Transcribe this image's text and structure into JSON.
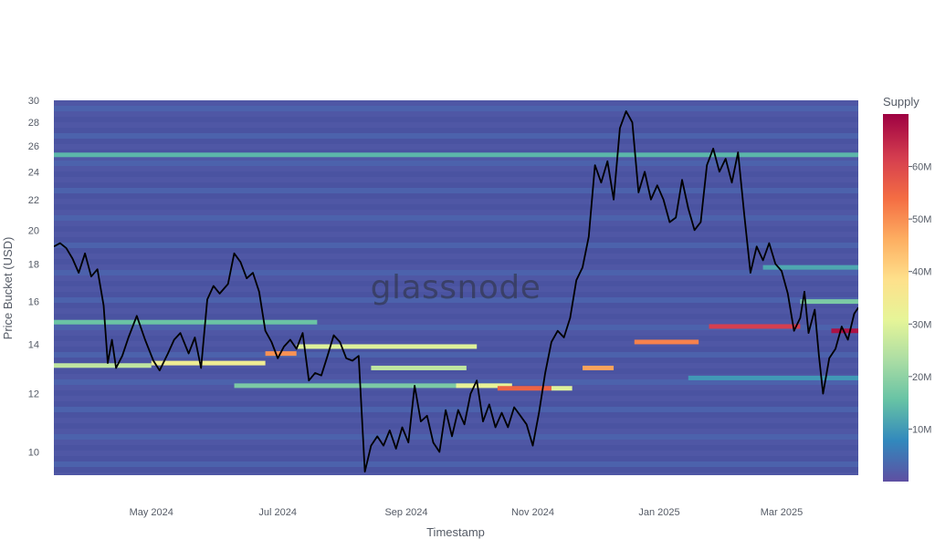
{
  "chart_data": {
    "type": "heatmap",
    "title": "",
    "watermark": "glassnode",
    "xlabel": "Timestamp",
    "ylabel": "Price Bucket (USD)",
    "y_scale": "log",
    "ylim": [
      9.3,
      30
    ],
    "xlim": [
      "2024-03-15",
      "2025-04-07"
    ],
    "x_ticks": [
      {
        "date": "2024-05-01",
        "label": "May 2024"
      },
      {
        "date": "2024-07-01",
        "label": "Jul 2024"
      },
      {
        "date": "2024-09-01",
        "label": "Sep 2024"
      },
      {
        "date": "2024-11-01",
        "label": "Nov 2024"
      },
      {
        "date": "2025-01-01",
        "label": "Jan 2025"
      },
      {
        "date": "2025-03-01",
        "label": "Mar 2025"
      }
    ],
    "y_ticks": [
      {
        "value": 10,
        "label": "10"
      },
      {
        "value": 12,
        "label": "12"
      },
      {
        "value": 14,
        "label": "14"
      },
      {
        "value": 16,
        "label": "16"
      },
      {
        "value": 18,
        "label": "18"
      },
      {
        "value": 20,
        "label": "20"
      },
      {
        "value": 22,
        "label": "22"
      },
      {
        "value": 24,
        "label": "24"
      },
      {
        "value": 26,
        "label": "26"
      },
      {
        "value": 28,
        "label": "28"
      },
      {
        "value": 30,
        "label": "30"
      }
    ],
    "colorbar": {
      "title": "Supply",
      "min": 0,
      "max": 70000000,
      "ticks": [
        {
          "value": 10000000,
          "label": "10M"
        },
        {
          "value": 20000000,
          "label": "20M"
        },
        {
          "value": 30000000,
          "label": "30M"
        },
        {
          "value": 40000000,
          "label": "40M"
        },
        {
          "value": 50000000,
          "label": "50M"
        },
        {
          "value": 60000000,
          "label": "60M"
        }
      ],
      "colorscale": [
        "#5e4fa2",
        "#3288bd",
        "#66c2a5",
        "#abdda4",
        "#e6f598",
        "#fee08b",
        "#fdae61",
        "#f46d43",
        "#d53e4f",
        "#9e0142"
      ]
    },
    "supply_bands": [
      {
        "start": "2024-03-15",
        "end": "2025-04-07",
        "price": 25.3,
        "supply": 14000000
      },
      {
        "start": "2024-03-15",
        "end": "2024-05-01",
        "price": 13.1,
        "supply": 26000000
      },
      {
        "start": "2024-05-01",
        "end": "2024-06-25",
        "price": 13.2,
        "supply": 34000000
      },
      {
        "start": "2024-06-25",
        "end": "2024-07-10",
        "price": 13.6,
        "supply": 50000000
      },
      {
        "start": "2024-07-10",
        "end": "2024-10-05",
        "price": 13.9,
        "supply": 30000000
      },
      {
        "start": "2024-03-15",
        "end": "2024-07-20",
        "price": 15.0,
        "supply": 16000000
      },
      {
        "start": "2024-06-10",
        "end": "2024-10-20",
        "price": 12.3,
        "supply": 18000000
      },
      {
        "start": "2024-08-15",
        "end": "2024-09-30",
        "price": 13.0,
        "supply": 26000000
      },
      {
        "start": "2024-09-25",
        "end": "2024-10-22",
        "price": 12.3,
        "supply": 32000000
      },
      {
        "start": "2024-10-15",
        "end": "2024-11-10",
        "price": 12.2,
        "supply": 56000000
      },
      {
        "start": "2024-11-10",
        "end": "2024-11-20",
        "price": 12.2,
        "supply": 30000000
      },
      {
        "start": "2024-11-25",
        "end": "2024-12-10",
        "price": 13.0,
        "supply": 48000000
      },
      {
        "start": "2024-12-20",
        "end": "2025-01-20",
        "price": 14.1,
        "supply": 52000000
      },
      {
        "start": "2025-01-25",
        "end": "2025-03-10",
        "price": 14.8,
        "supply": 62000000
      },
      {
        "start": "2025-03-25",
        "end": "2025-04-07",
        "price": 14.6,
        "supply": 68000000
      },
      {
        "start": "2025-03-10",
        "end": "2025-04-07",
        "price": 16.0,
        "supply": 18000000
      },
      {
        "start": "2025-02-20",
        "end": "2025-04-07",
        "price": 17.8,
        "supply": 12000000
      },
      {
        "start": "2025-01-15",
        "end": "2025-04-07",
        "price": 12.6,
        "supply": 10000000
      }
    ],
    "price_series": {
      "name": "Price",
      "points": [
        [
          "2024-03-15",
          19.0
        ],
        [
          "2024-03-18",
          19.2
        ],
        [
          "2024-03-21",
          18.9
        ],
        [
          "2024-03-24",
          18.3
        ],
        [
          "2024-03-27",
          17.5
        ],
        [
          "2024-03-30",
          18.6
        ],
        [
          "2024-04-02",
          17.3
        ],
        [
          "2024-04-05",
          17.7
        ],
        [
          "2024-04-08",
          15.8
        ],
        [
          "2024-04-10",
          13.2
        ],
        [
          "2024-04-12",
          14.2
        ],
        [
          "2024-04-14",
          13.0
        ],
        [
          "2024-04-17",
          13.5
        ],
        [
          "2024-04-20",
          14.3
        ],
        [
          "2024-04-24",
          15.3
        ],
        [
          "2024-04-28",
          14.2
        ],
        [
          "2024-05-02",
          13.3
        ],
        [
          "2024-05-05",
          12.9
        ],
        [
          "2024-05-09",
          13.6
        ],
        [
          "2024-05-12",
          14.2
        ],
        [
          "2024-05-15",
          14.5
        ],
        [
          "2024-05-19",
          13.6
        ],
        [
          "2024-05-22",
          14.3
        ],
        [
          "2024-05-25",
          13.0
        ],
        [
          "2024-05-28",
          16.1
        ],
        [
          "2024-05-31",
          16.8
        ],
        [
          "2024-06-03",
          16.4
        ],
        [
          "2024-06-07",
          16.9
        ],
        [
          "2024-06-10",
          18.6
        ],
        [
          "2024-06-13",
          18.1
        ],
        [
          "2024-06-16",
          17.2
        ],
        [
          "2024-06-19",
          17.5
        ],
        [
          "2024-06-22",
          16.5
        ],
        [
          "2024-06-25",
          14.6
        ],
        [
          "2024-06-28",
          14.1
        ],
        [
          "2024-07-01",
          13.4
        ],
        [
          "2024-07-04",
          13.9
        ],
        [
          "2024-07-07",
          14.2
        ],
        [
          "2024-07-10",
          13.8
        ],
        [
          "2024-07-13",
          14.5
        ],
        [
          "2024-07-16",
          12.5
        ],
        [
          "2024-07-19",
          12.8
        ],
        [
          "2024-07-22",
          12.7
        ],
        [
          "2024-07-25",
          13.5
        ],
        [
          "2024-07-28",
          14.4
        ],
        [
          "2024-07-31",
          14.1
        ],
        [
          "2024-08-03",
          13.4
        ],
        [
          "2024-08-06",
          13.3
        ],
        [
          "2024-08-09",
          13.5
        ],
        [
          "2024-08-12",
          9.4
        ],
        [
          "2024-08-15",
          10.2
        ],
        [
          "2024-08-18",
          10.5
        ],
        [
          "2024-08-21",
          10.2
        ],
        [
          "2024-08-24",
          10.7
        ],
        [
          "2024-08-27",
          10.1
        ],
        [
          "2024-08-30",
          10.8
        ],
        [
          "2024-09-02",
          10.3
        ],
        [
          "2024-09-05",
          12.3
        ],
        [
          "2024-09-08",
          11.0
        ],
        [
          "2024-09-11",
          11.2
        ],
        [
          "2024-09-14",
          10.3
        ],
        [
          "2024-09-17",
          10.0
        ],
        [
          "2024-09-20",
          11.4
        ],
        [
          "2024-09-23",
          10.5
        ],
        [
          "2024-09-26",
          11.4
        ],
        [
          "2024-09-29",
          10.9
        ],
        [
          "2024-10-02",
          12.0
        ],
        [
          "2024-10-05",
          12.5
        ],
        [
          "2024-10-08",
          11.0
        ],
        [
          "2024-10-11",
          11.6
        ],
        [
          "2024-10-14",
          10.8
        ],
        [
          "2024-10-17",
          11.3
        ],
        [
          "2024-10-20",
          10.8
        ],
        [
          "2024-10-23",
          11.5
        ],
        [
          "2024-10-26",
          11.2
        ],
        [
          "2024-10-29",
          10.9
        ],
        [
          "2024-11-01",
          10.2
        ],
        [
          "2024-11-04",
          11.3
        ],
        [
          "2024-11-07",
          12.8
        ],
        [
          "2024-11-10",
          14.1
        ],
        [
          "2024-11-13",
          14.6
        ],
        [
          "2024-11-16",
          14.3
        ],
        [
          "2024-11-19",
          15.2
        ],
        [
          "2024-11-22",
          17.1
        ],
        [
          "2024-11-25",
          17.8
        ],
        [
          "2024-11-28",
          19.6
        ],
        [
          "2024-12-01",
          24.5
        ],
        [
          "2024-12-04",
          23.2
        ],
        [
          "2024-12-07",
          24.8
        ],
        [
          "2024-12-10",
          22.0
        ],
        [
          "2024-12-13",
          27.5
        ],
        [
          "2024-12-16",
          29.0
        ],
        [
          "2024-12-19",
          28.0
        ],
        [
          "2024-12-22",
          22.5
        ],
        [
          "2024-12-25",
          24.0
        ],
        [
          "2024-12-28",
          22.0
        ],
        [
          "2024-12-31",
          23.0
        ],
        [
          "2025-01-03",
          22.0
        ],
        [
          "2025-01-06",
          20.5
        ],
        [
          "2025-01-09",
          20.8
        ],
        [
          "2025-01-12",
          23.4
        ],
        [
          "2025-01-15",
          21.4
        ],
        [
          "2025-01-18",
          20.0
        ],
        [
          "2025-01-21",
          20.5
        ],
        [
          "2025-01-24",
          24.5
        ],
        [
          "2025-01-27",
          25.8
        ],
        [
          "2025-01-30",
          24.0
        ],
        [
          "2025-02-02",
          25.0
        ],
        [
          "2025-02-05",
          23.2
        ],
        [
          "2025-02-08",
          25.5
        ],
        [
          "2025-02-11",
          21.0
        ],
        [
          "2025-02-14",
          17.5
        ],
        [
          "2025-02-17",
          19.0
        ],
        [
          "2025-02-20",
          18.2
        ],
        [
          "2025-02-23",
          19.2
        ],
        [
          "2025-02-26",
          18.0
        ],
        [
          "2025-03-01",
          17.6
        ],
        [
          "2025-03-04",
          16.4
        ],
        [
          "2025-03-07",
          14.6
        ],
        [
          "2025-03-10",
          15.2
        ],
        [
          "2025-03-12",
          16.5
        ],
        [
          "2025-03-14",
          14.5
        ],
        [
          "2025-03-17",
          15.6
        ],
        [
          "2025-03-19",
          13.5
        ],
        [
          "2025-03-21",
          12.0
        ],
        [
          "2025-03-24",
          13.4
        ],
        [
          "2025-03-27",
          13.8
        ],
        [
          "2025-03-30",
          14.8
        ],
        [
          "2025-04-02",
          14.2
        ],
        [
          "2025-04-05",
          15.4
        ],
        [
          "2025-04-07",
          15.7
        ]
      ]
    }
  }
}
